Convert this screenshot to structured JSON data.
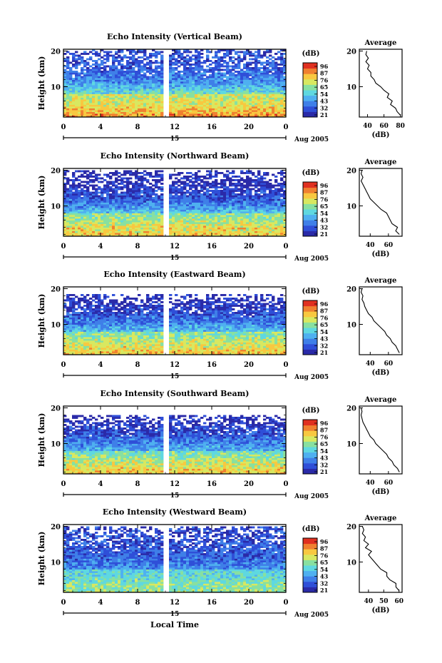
{
  "figure": {
    "xlabel_bottom": "Local Time",
    "colorbar_unit": "(dB)",
    "colorbar_ticks": [
      "96",
      "87",
      "76",
      "65",
      "54",
      "43",
      "32",
      "21"
    ],
    "colormap": [
      "#2a2aa8",
      "#2f4fd8",
      "#3f7fe8",
      "#4fb0f0",
      "#5fd8e0",
      "#88e0a0",
      "#d8e860",
      "#f8c840",
      "#f08030",
      "#e03020"
    ],
    "date_label": "Aug 2005",
    "day_label": "15",
    "time_ticks": [
      "0",
      "4",
      "8",
      "12",
      "16",
      "20",
      "0"
    ],
    "height_ticks": [
      "10",
      "20"
    ],
    "ylabel": "Height (km)",
    "avg_title": "Average",
    "avg_xlabel": "(dB)"
  },
  "chart_data": [
    {
      "type": "heatmap",
      "title": "Echo Intensity (Vertical Beam)",
      "xlabel": "Local Time",
      "ylabel": "Height (km)",
      "x_range_hours": [
        0,
        24
      ],
      "y_range_km": [
        1.5,
        20.5
      ],
      "color_range_db": [
        21,
        98
      ],
      "data_gap_hours": [
        10.9,
        11.3
      ],
      "echo_top_km": 20,
      "average_profile": {
        "xticks": [
          "40",
          "60",
          "80"
        ],
        "xlim": [
          30,
          82
        ],
        "heights_km": [
          2,
          3,
          4,
          5,
          6,
          7,
          8,
          9,
          10,
          11,
          12,
          13,
          14,
          15,
          16,
          17,
          18,
          19,
          20
        ],
        "values_db": [
          80,
          76,
          74,
          68,
          70,
          64,
          66,
          60,
          56,
          50,
          48,
          44,
          44,
          40,
          42,
          38,
          41,
          38,
          39
        ]
      }
    },
    {
      "type": "heatmap",
      "title": "Echo Intensity (Northward Beam)",
      "xlabel": "Local Time",
      "ylabel": "Height (km)",
      "x_range_hours": [
        0,
        24
      ],
      "y_range_km": [
        1.5,
        20.5
      ],
      "color_range_db": [
        21,
        96
      ],
      "data_gap_hours": [
        10.9,
        11.3
      ],
      "echo_top_km": 19.5,
      "average_profile": {
        "xticks": [
          "40",
          "60"
        ],
        "xlim": [
          28,
          75
        ],
        "heights_km": [
          2,
          3,
          4,
          5,
          6,
          7,
          8,
          9,
          10,
          11,
          12,
          13,
          14,
          15,
          16,
          17,
          18,
          19,
          20
        ],
        "values_db": [
          72,
          68,
          70,
          64,
          62,
          60,
          58,
          52,
          48,
          44,
          40,
          38,
          36,
          34,
          32,
          30,
          32,
          30,
          31
        ]
      }
    },
    {
      "type": "heatmap",
      "title": "Echo Intensity (Eastward Beam)",
      "xlabel": "Local Time",
      "ylabel": "Height (km)",
      "x_range_hours": [
        0,
        24
      ],
      "y_range_km": [
        1.5,
        20.5
      ],
      "color_range_db": [
        21,
        96
      ],
      "data_gap_hours": [
        10.9,
        11.3
      ],
      "echo_top_km": 18,
      "average_profile": {
        "xticks": [
          "40",
          "60"
        ],
        "xlim": [
          28,
          75
        ],
        "heights_km": [
          2,
          3,
          4,
          5,
          6,
          7,
          8,
          9,
          10,
          11,
          12,
          13,
          14,
          15,
          16,
          17,
          18,
          19,
          20
        ],
        "values_db": [
          72,
          70,
          68,
          64,
          62,
          58,
          56,
          52,
          48,
          44,
          42,
          38,
          36,
          34,
          33,
          31,
          32,
          30,
          31
        ]
      }
    },
    {
      "type": "heatmap",
      "title": "Echo Intensity (Southward Beam)",
      "xlabel": "Local Time",
      "ylabel": "Height (km)",
      "x_range_hours": [
        0,
        24
      ],
      "y_range_km": [
        1.5,
        20.5
      ],
      "color_range_db": [
        21,
        96
      ],
      "data_gap_hours": [
        10.9,
        11.3
      ],
      "echo_top_km": 17.5,
      "average_profile": {
        "xticks": [
          "40",
          "60"
        ],
        "xlim": [
          28,
          75
        ],
        "heights_km": [
          2,
          3,
          4,
          5,
          6,
          7,
          8,
          9,
          10,
          11,
          12,
          13,
          14,
          15,
          16,
          17,
          18,
          19,
          20
        ],
        "values_db": [
          72,
          70,
          66,
          64,
          60,
          58,
          54,
          50,
          46,
          44,
          40,
          38,
          36,
          34,
          32,
          31,
          30,
          31,
          30
        ]
      }
    },
    {
      "type": "heatmap",
      "title": "Echo Intensity (Westward Beam)",
      "xlabel": "Local Time",
      "ylabel": "Height (km)",
      "x_range_hours": [
        0,
        24
      ],
      "y_range_km": [
        1.5,
        20.5
      ],
      "color_range_db": [
        21,
        96
      ],
      "data_gap_hours": [
        10.9,
        11.3
      ],
      "echo_top_km": 19.5,
      "average_profile": {
        "xticks": [
          "40",
          "50",
          "60"
        ],
        "xlim": [
          34,
          62
        ],
        "heights_km": [
          2,
          3,
          4,
          5,
          6,
          7,
          8,
          9,
          10,
          11,
          12,
          13,
          14,
          15,
          16,
          17,
          18,
          19,
          20
        ],
        "values_db": [
          60,
          58,
          58,
          54,
          52,
          52,
          48,
          46,
          44,
          42,
          40,
          42,
          38,
          40,
          37,
          38,
          36,
          37,
          36
        ]
      }
    }
  ]
}
